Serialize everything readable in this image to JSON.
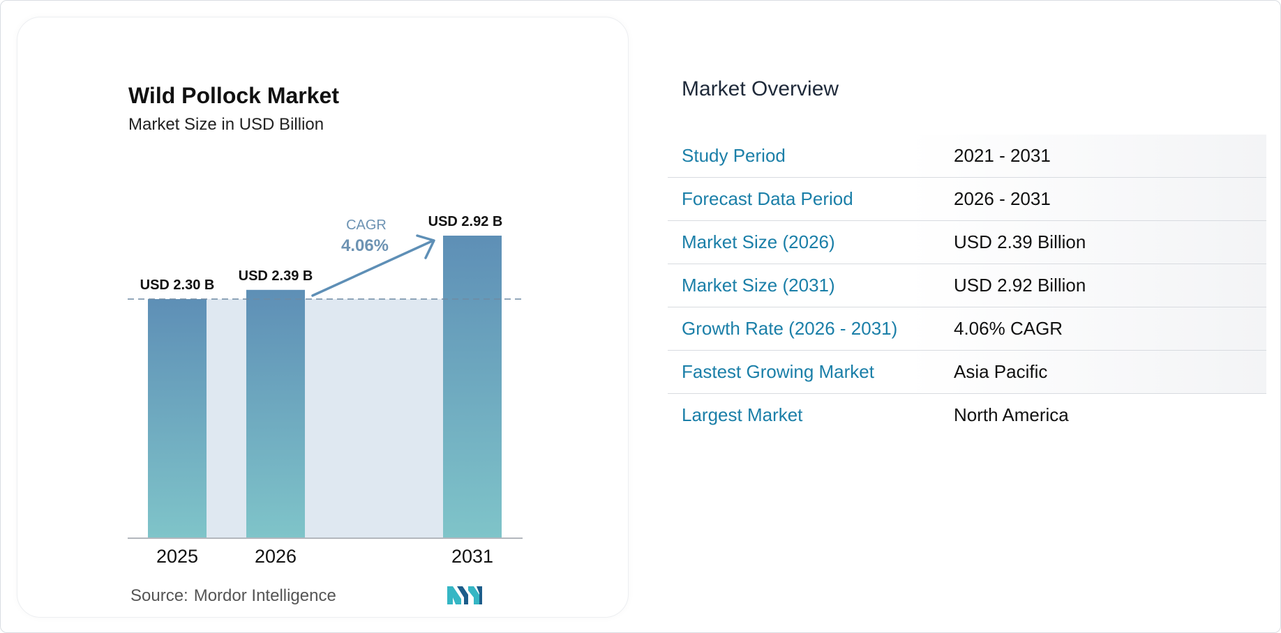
{
  "chart": {
    "title": "Wild Pollock Market",
    "subtitle": "Market Size in USD Billion",
    "source_label": "Source:",
    "source_name": "Mordor Intelligence"
  },
  "chart_data": {
    "type": "bar",
    "title": "Wild Pollock Market",
    "subtitle": "Market Size in USD Billion",
    "categories": [
      "2025",
      "2026",
      "2031"
    ],
    "values": [
      2.3,
      2.39,
      2.92
    ],
    "value_labels": [
      "USD 2.30 B",
      "USD 2.39 B",
      "USD 2.92 B"
    ],
    "cagr_label": "CAGR",
    "cagr_value": "4.06%",
    "reference_line_value": 2.3,
    "grid": false,
    "legend": "none",
    "colors": {
      "bar_top": "#5e8fb6",
      "bar_bottom": "#7fc4c9",
      "band": "#dfe8f1",
      "arrow": "#5e8fb6",
      "cagr_text": "#6d93b3"
    }
  },
  "overview": {
    "title": "Market Overview",
    "rows": [
      {
        "label": "Study Period",
        "value": "2021 - 2031"
      },
      {
        "label": "Forecast Data Period",
        "value": "2026 - 2031"
      },
      {
        "label": "Market Size (2026)",
        "value": "USD 2.39 Billion"
      },
      {
        "label": "Market Size (2031)",
        "value": "USD 2.92 Billion"
      },
      {
        "label": "Growth Rate (2026 - 2031)",
        "value": "4.06% CAGR"
      },
      {
        "label": "Fastest Growing Market",
        "value": "Asia Pacific"
      },
      {
        "label": "Largest Market",
        "value": "North America"
      }
    ]
  },
  "colors": {
    "label_blue": "#1b7fa8",
    "logo_dark": "#1c5d8a",
    "logo_teal": "#35b6c4"
  }
}
